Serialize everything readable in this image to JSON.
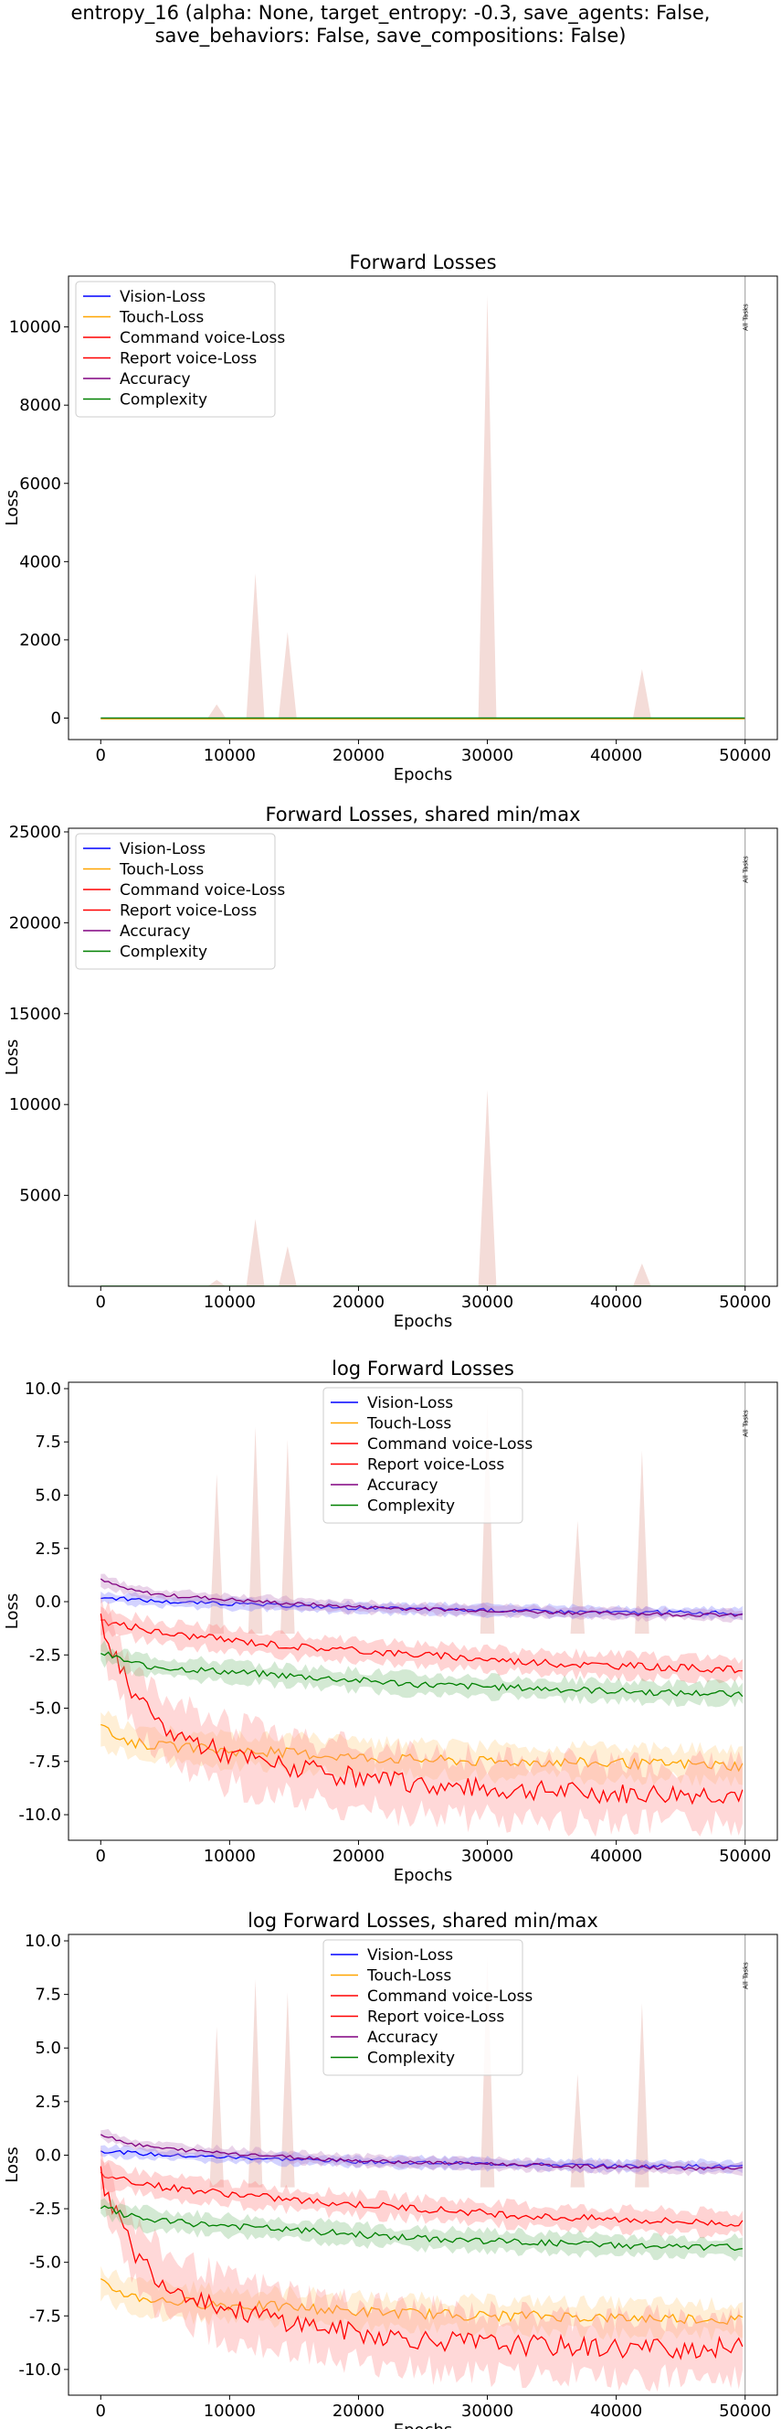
{
  "figure": {
    "title_lines": [
      "entropy_16 (alpha: None, target_entropy: -0.3, save_agents: False,",
      "save_behaviors: False, save_compositions: False)"
    ]
  },
  "chart_data": [
    {
      "type": "line",
      "title": "Forward Losses",
      "xlabel": "Epochs",
      "ylabel": "Loss",
      "xlim": [
        -2500,
        52500
      ],
      "ylim": [
        -550,
        11300
      ],
      "xticks": [
        0,
        10000,
        20000,
        30000,
        40000,
        50000
      ],
      "yticks": [
        0,
        2000,
        4000,
        6000,
        8000,
        10000
      ],
      "legend_position": "upper-left",
      "vline": {
        "x": 50000,
        "label": "All Tasks"
      },
      "spikes": [
        {
          "x": 9000,
          "y": 350
        },
        {
          "x": 12000,
          "y": 3700
        },
        {
          "x": 14500,
          "y": 2200
        },
        {
          "x": 30000,
          "y": 10800
        },
        {
          "x": 42000,
          "y": 1250
        }
      ],
      "series": [
        {
          "name": "Vision-Loss",
          "color": "#0000ff"
        },
        {
          "name": "Touch-Loss",
          "color": "#ffa500"
        },
        {
          "name": "Command voice-Loss",
          "color": "#ff0000"
        },
        {
          "name": "Report voice-Loss",
          "color": "#ff0000"
        },
        {
          "name": "Accuracy",
          "color": "#800080"
        },
        {
          "name": "Complexity",
          "color": "#008000"
        }
      ]
    },
    {
      "type": "line",
      "title": "Forward Losses, shared min/max",
      "xlabel": "Epochs",
      "ylabel": "Loss",
      "xlim": [
        -2500,
        52500
      ],
      "ylim": [
        0,
        25200
      ],
      "xticks": [
        0,
        10000,
        20000,
        30000,
        40000,
        50000
      ],
      "yticks": [
        5000,
        10000,
        15000,
        20000,
        25000
      ],
      "legend_position": "upper-left",
      "vline": {
        "x": 50000,
        "label": "All Tasks"
      },
      "spikes": [
        {
          "x": 9000,
          "y": 350
        },
        {
          "x": 12000,
          "y": 3700
        },
        {
          "x": 14500,
          "y": 2200
        },
        {
          "x": 30000,
          "y": 10800
        },
        {
          "x": 42000,
          "y": 1250
        }
      ],
      "series": [
        {
          "name": "Vision-Loss",
          "color": "#0000ff"
        },
        {
          "name": "Touch-Loss",
          "color": "#ffa500"
        },
        {
          "name": "Command voice-Loss",
          "color": "#ff0000"
        },
        {
          "name": "Report voice-Loss",
          "color": "#ff0000"
        },
        {
          "name": "Accuracy",
          "color": "#800080"
        },
        {
          "name": "Complexity",
          "color": "#008000"
        }
      ]
    },
    {
      "type": "line",
      "title": "log Forward Losses",
      "xlabel": "Epochs",
      "ylabel": "Loss",
      "xlim": [
        -2500,
        52500
      ],
      "ylim": [
        -11.2,
        10.3
      ],
      "xticks": [
        0,
        10000,
        20000,
        30000,
        40000,
        50000
      ],
      "yticks": [
        -10.0,
        -7.5,
        -5.0,
        -2.5,
        0.0,
        2.5,
        5.0,
        7.5,
        10.0
      ],
      "legend_position": "upper-center",
      "vline": {
        "x": 50000,
        "label": "All Tasks"
      },
      "spikes": [
        {
          "x": 9000,
          "y": 6.0
        },
        {
          "x": 12000,
          "y": 8.2
        },
        {
          "x": 14500,
          "y": 7.6
        },
        {
          "x": 30000,
          "y": 9.3
        },
        {
          "x": 37000,
          "y": 3.8
        },
        {
          "x": 42000,
          "y": 7.1
        }
      ],
      "series": [
        {
          "name": "Vision-Loss",
          "color": "#0000ff",
          "x": [
            0,
            2500,
            5000,
            10000,
            15000,
            20000,
            25000,
            30000,
            35000,
            40000,
            45000,
            50000
          ],
          "values": [
            0.2,
            0.1,
            0.0,
            -0.1,
            -0.2,
            -0.3,
            -0.35,
            -0.4,
            -0.45,
            -0.5,
            -0.5,
            -0.55
          ],
          "band": 0.25
        },
        {
          "name": "Touch-Loss",
          "color": "#ffa500",
          "x": [
            0,
            2500,
            5000,
            10000,
            15000,
            20000,
            25000,
            30000,
            35000,
            40000,
            45000,
            50000
          ],
          "values": [
            -6.0,
            -6.6,
            -6.8,
            -7.0,
            -7.1,
            -7.3,
            -7.4,
            -7.5,
            -7.5,
            -7.6,
            -7.6,
            -7.7
          ],
          "band": 0.7
        },
        {
          "name": "Command voice-Loss",
          "color": "#ff0000",
          "x": [
            0,
            2500,
            5000,
            10000,
            15000,
            20000,
            25000,
            30000,
            35000,
            40000,
            45000,
            50000
          ],
          "values": [
            -0.9,
            -1.2,
            -1.5,
            -1.8,
            -2.1,
            -2.3,
            -2.5,
            -2.7,
            -2.9,
            -3.0,
            -3.1,
            -3.2
          ],
          "band": 0.5
        },
        {
          "name": "Report voice-Loss",
          "color": "#ff0000",
          "x": [
            0,
            2500,
            5000,
            10000,
            15000,
            20000,
            25000,
            30000,
            35000,
            40000,
            45000,
            50000
          ],
          "values": [
            -1.0,
            -4.5,
            -6.0,
            -7.2,
            -7.8,
            -8.3,
            -8.6,
            -8.8,
            -8.9,
            -9.0,
            -9.0,
            -9.0
          ],
          "band": 1.4
        },
        {
          "name": "Accuracy",
          "color": "#800080",
          "x": [
            0,
            2500,
            5000,
            10000,
            15000,
            20000,
            25000,
            30000,
            35000,
            40000,
            45000,
            50000
          ],
          "values": [
            1.0,
            0.5,
            0.3,
            0.1,
            -0.1,
            -0.25,
            -0.35,
            -0.4,
            -0.5,
            -0.55,
            -0.6,
            -0.65
          ],
          "band": 0.25
        },
        {
          "name": "Complexity",
          "color": "#008000",
          "x": [
            0,
            2500,
            5000,
            10000,
            15000,
            20000,
            25000,
            30000,
            35000,
            40000,
            45000,
            50000
          ],
          "values": [
            -2.4,
            -2.9,
            -3.1,
            -3.3,
            -3.5,
            -3.7,
            -3.9,
            -4.0,
            -4.1,
            -4.2,
            -4.3,
            -4.3
          ],
          "band": 0.45
        }
      ]
    },
    {
      "type": "line",
      "title": "log Forward Losses, shared min/max",
      "xlabel": "Epochs",
      "ylabel": "Loss",
      "xlim": [
        -2500,
        52500
      ],
      "ylim": [
        -11.2,
        10.3
      ],
      "xticks": [
        0,
        10000,
        20000,
        30000,
        40000,
        50000
      ],
      "yticks": [
        -10.0,
        -7.5,
        -5.0,
        -2.5,
        0.0,
        2.5,
        5.0,
        7.5,
        10.0
      ],
      "legend_position": "upper-center",
      "vline": {
        "x": 50000,
        "label": "All Tasks"
      },
      "spikes": [
        {
          "x": 9000,
          "y": 6.0
        },
        {
          "x": 12000,
          "y": 8.2
        },
        {
          "x": 14500,
          "y": 7.6
        },
        {
          "x": 30000,
          "y": 9.3
        },
        {
          "x": 37000,
          "y": 3.8
        },
        {
          "x": 42000,
          "y": 7.1
        }
      ],
      "series": [
        {
          "name": "Vision-Loss",
          "color": "#0000ff",
          "x": [
            0,
            2500,
            5000,
            10000,
            15000,
            20000,
            25000,
            30000,
            35000,
            40000,
            45000,
            50000
          ],
          "values": [
            0.2,
            0.1,
            0.0,
            -0.1,
            -0.2,
            -0.3,
            -0.35,
            -0.4,
            -0.45,
            -0.5,
            -0.5,
            -0.55
          ],
          "band": 0.25
        },
        {
          "name": "Touch-Loss",
          "color": "#ffa500",
          "x": [
            0,
            2500,
            5000,
            10000,
            15000,
            20000,
            25000,
            30000,
            35000,
            40000,
            45000,
            50000
          ],
          "values": [
            -6.0,
            -6.6,
            -6.8,
            -7.0,
            -7.1,
            -7.3,
            -7.4,
            -7.5,
            -7.5,
            -7.6,
            -7.6,
            -7.7
          ],
          "band": 0.7
        },
        {
          "name": "Command voice-Loss",
          "color": "#ff0000",
          "x": [
            0,
            2500,
            5000,
            10000,
            15000,
            20000,
            25000,
            30000,
            35000,
            40000,
            45000,
            50000
          ],
          "values": [
            -0.9,
            -1.2,
            -1.5,
            -1.8,
            -2.1,
            -2.3,
            -2.5,
            -2.7,
            -2.9,
            -3.0,
            -3.1,
            -3.2
          ],
          "band": 0.5
        },
        {
          "name": "Report voice-Loss",
          "color": "#ff0000",
          "x": [
            0,
            2500,
            5000,
            10000,
            15000,
            20000,
            25000,
            30000,
            35000,
            40000,
            45000,
            50000
          ],
          "values": [
            -1.0,
            -4.5,
            -6.0,
            -7.2,
            -7.8,
            -8.3,
            -8.6,
            -8.8,
            -8.9,
            -9.0,
            -9.0,
            -9.0
          ],
          "band": 1.4
        },
        {
          "name": "Accuracy",
          "color": "#800080",
          "x": [
            0,
            2500,
            5000,
            10000,
            15000,
            20000,
            25000,
            30000,
            35000,
            40000,
            45000,
            50000
          ],
          "values": [
            1.0,
            0.5,
            0.3,
            0.1,
            -0.1,
            -0.25,
            -0.35,
            -0.4,
            -0.5,
            -0.55,
            -0.6,
            -0.65
          ],
          "band": 0.25
        },
        {
          "name": "Complexity",
          "color": "#008000",
          "x": [
            0,
            2500,
            5000,
            10000,
            15000,
            20000,
            25000,
            30000,
            35000,
            40000,
            45000,
            50000
          ],
          "values": [
            -2.4,
            -2.9,
            -3.1,
            -3.3,
            -3.5,
            -3.7,
            -3.9,
            -4.0,
            -4.1,
            -4.2,
            -4.3,
            -4.3
          ],
          "band": 0.45
        }
      ]
    }
  ]
}
